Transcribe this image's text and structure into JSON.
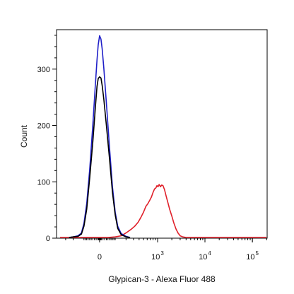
{
  "chart_data": {
    "type": "line",
    "title": "",
    "xlabel": "Glypican-3 - Alexa Fluor 488",
    "ylabel": "Count",
    "x_scale": "biexponential",
    "x_ticks": [
      {
        "value": 0,
        "label": "0"
      },
      {
        "value": 1000,
        "label": "10",
        "exponent": "3"
      },
      {
        "value": 10000,
        "label": "10",
        "exponent": "4"
      },
      {
        "value": 100000,
        "label": "10",
        "exponent": "5"
      }
    ],
    "y_ticks": [
      0,
      100,
      200,
      300
    ],
    "ylim": [
      0,
      370
    ],
    "grid": false,
    "legend": "none",
    "series": [
      {
        "color": "#1f1fc8",
        "points": [
          [
            -250,
            0
          ],
          [
            -200,
            1
          ],
          [
            -150,
            3
          ],
          [
            -120,
            8
          ],
          [
            -100,
            25
          ],
          [
            -80,
            60
          ],
          [
            -60,
            120
          ],
          [
            -40,
            200
          ],
          [
            -25,
            270
          ],
          [
            -15,
            315
          ],
          [
            -8,
            342
          ],
          [
            0,
            358
          ],
          [
            8,
            352
          ],
          [
            15,
            335
          ],
          [
            25,
            300
          ],
          [
            40,
            240
          ],
          [
            60,
            160
          ],
          [
            80,
            90
          ],
          [
            100,
            45
          ],
          [
            120,
            20
          ],
          [
            150,
            7
          ],
          [
            200,
            2
          ],
          [
            250,
            0
          ]
        ]
      },
      {
        "color": "#000000",
        "points": [
          [
            -250,
            0
          ],
          [
            -200,
            1
          ],
          [
            -150,
            2
          ],
          [
            -120,
            6
          ],
          [
            -100,
            20
          ],
          [
            -80,
            50
          ],
          [
            -60,
            105
          ],
          [
            -40,
            170
          ],
          [
            -25,
            230
          ],
          [
            -15,
            268
          ],
          [
            -8,
            282
          ],
          [
            0,
            285
          ],
          [
            8,
            283
          ],
          [
            15,
            270
          ],
          [
            25,
            245
          ],
          [
            40,
            200
          ],
          [
            60,
            140
          ],
          [
            80,
            80
          ],
          [
            100,
            40
          ],
          [
            120,
            16
          ],
          [
            150,
            5
          ],
          [
            200,
            1
          ],
          [
            250,
            0
          ]
        ]
      },
      {
        "color": "#e0202a",
        "points": [
          [
            -400,
            0
          ],
          [
            -200,
            0
          ],
          [
            0,
            0
          ],
          [
            50,
            0
          ],
          [
            100,
            1
          ],
          [
            150,
            3
          ],
          [
            200,
            8
          ],
          [
            260,
            14
          ],
          [
            320,
            20
          ],
          [
            380,
            27
          ],
          [
            440,
            36
          ],
          [
            500,
            45
          ],
          [
            560,
            55
          ],
          [
            620,
            60
          ],
          [
            680,
            66
          ],
          [
            740,
            72
          ],
          [
            800,
            80
          ],
          [
            860,
            86
          ],
          [
            920,
            88
          ],
          [
            970,
            92
          ],
          [
            1020,
            90
          ],
          [
            1080,
            94
          ],
          [
            1150,
            90
          ],
          [
            1220,
            93
          ],
          [
            1300,
            92
          ],
          [
            1400,
            85
          ],
          [
            1500,
            75
          ],
          [
            1650,
            62
          ],
          [
            1800,
            50
          ],
          [
            2000,
            38
          ],
          [
            2200,
            26
          ],
          [
            2450,
            15
          ],
          [
            2700,
            8
          ],
          [
            3000,
            3
          ],
          [
            3400,
            1
          ],
          [
            4000,
            0
          ],
          [
            10000,
            0
          ],
          [
            100000,
            0
          ],
          [
            200000,
            0
          ]
        ]
      }
    ]
  }
}
